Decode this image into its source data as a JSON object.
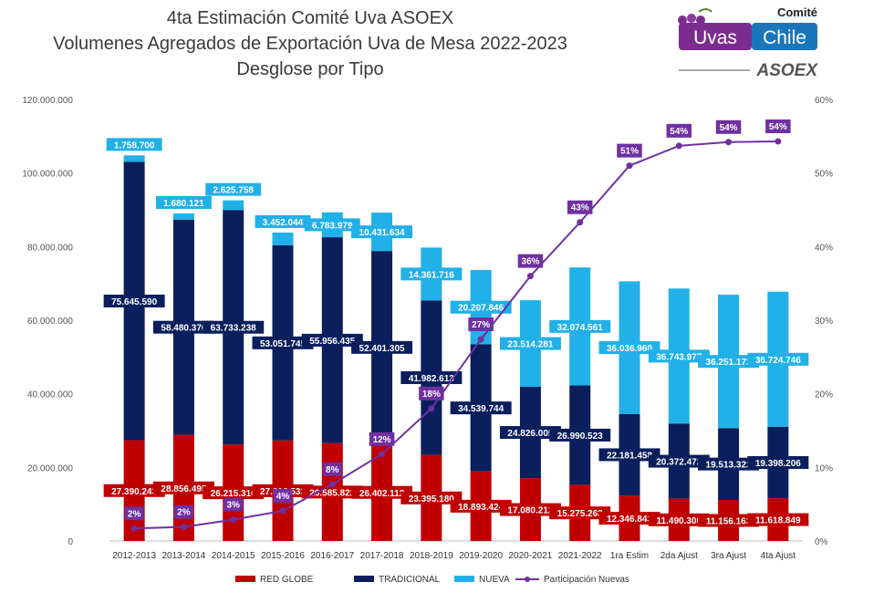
{
  "title_lines": [
    "4ta Estimación Comité Uva ASOEX",
    "Volumenes Agregados de Exportación Uva de Mesa 2022-2023",
    "Desglose por Tipo"
  ],
  "logo": {
    "top": "Comité",
    "left": "Uvas",
    "right": "Chile",
    "bottom": "ASOEX"
  },
  "colors": {
    "red_globe": "#c00000",
    "tradicional": "#0a1f5c",
    "nueva": "#21b0e8",
    "participacion": "#7030a0",
    "logo_purple": "#7b2d8e",
    "logo_blue": "#1b75bb"
  },
  "chart_data": {
    "type": "bar",
    "stacked": true,
    "categories": [
      "2012-2013",
      "2013-2014",
      "2014-2015",
      "2015-2016",
      "2016-2017",
      "2017-2018",
      "2018-2019",
      "2019-2020",
      "2020-2021",
      "2021-2022",
      "1ra Estim",
      "2da Ajust",
      "3ra Ajust",
      "4ta Ajust"
    ],
    "series": [
      {
        "name": "RED GLOBE",
        "color": "#c00000",
        "values": [
          27390243,
          28856495,
          26215316,
          27316533,
          26585822,
          26402112,
          23395180,
          18893424,
          17080212,
          15275263,
          12346843,
          11490300,
          11156163,
          11618849
        ],
        "labels": [
          "27.390.243",
          "28.856.495",
          "26.215.316",
          "27.316.533",
          "26.585.822",
          "26.402.112",
          "23.395.180",
          "18.893.424",
          "17.080.212",
          "15.275.263",
          "12.346.843",
          "11.490.300",
          "11.156.163",
          "11.618.849"
        ]
      },
      {
        "name": "TRADICIONAL",
        "color": "#0a1f5c",
        "values": [
          75645590,
          58480376,
          63733238,
          53051745,
          55956435,
          52401305,
          41982613,
          34539744,
          24826005,
          26990523,
          22181458,
          20372472,
          19513322,
          19398206
        ],
        "labels": [
          "75.645.590",
          "58.480.376",
          "63.733.238",
          "53.051.745",
          "55.956.435",
          "52.401.305",
          "41.982.613",
          "34.539.744",
          "24.826.005",
          "26.990.523",
          "22.181.458",
          "20.372.472",
          "19.513.322",
          "19.398.206"
        ]
      },
      {
        "name": "NUEVA",
        "color": "#21b0e8",
        "values": [
          1758700,
          1680121,
          2625758,
          3452044,
          6783979,
          10431634,
          14361716,
          20207846,
          23514281,
          32074561,
          36036960,
          36743977,
          36251172,
          36724746
        ],
        "labels": [
          "1.758.700",
          "1.680.121",
          "2.625.758",
          "3.452.044",
          "6.783.979",
          "10.431.634",
          "14.361.716",
          "20.207.846",
          "23.514.281",
          "32.074.561",
          "36.036.960",
          "36.743.977",
          "36.251.172",
          "36.724.746"
        ]
      }
    ],
    "line_series": {
      "name": "Participación Nuevas",
      "color": "#7030a0",
      "axis": "right",
      "values": [
        1.7,
        1.9,
        2.9,
        4.1,
        7.7,
        11.8,
        18.0,
        27.4,
        36.0,
        43.3,
        51.0,
        53.7,
        54.2,
        54.3
      ],
      "labels": [
        "2%",
        "2%",
        "3%",
        "4%",
        "8%",
        "12%",
        "18%",
        "27%",
        "36%",
        "43%",
        "51%",
        "54%",
        "54%",
        "54%"
      ]
    },
    "y_left": {
      "min": 0,
      "max": 120000000,
      "ticks": [
        "0",
        "20.000.000",
        "40.000.000",
        "60.000.000",
        "80.000.000",
        "100.000.000",
        "120.000.000"
      ]
    },
    "y_right": {
      "min": 0,
      "max": 60,
      "ticks": [
        "0%",
        "10%",
        "20%",
        "30%",
        "40%",
        "50%",
        "60%"
      ]
    },
    "legend_position": "bottom",
    "grid": false
  }
}
